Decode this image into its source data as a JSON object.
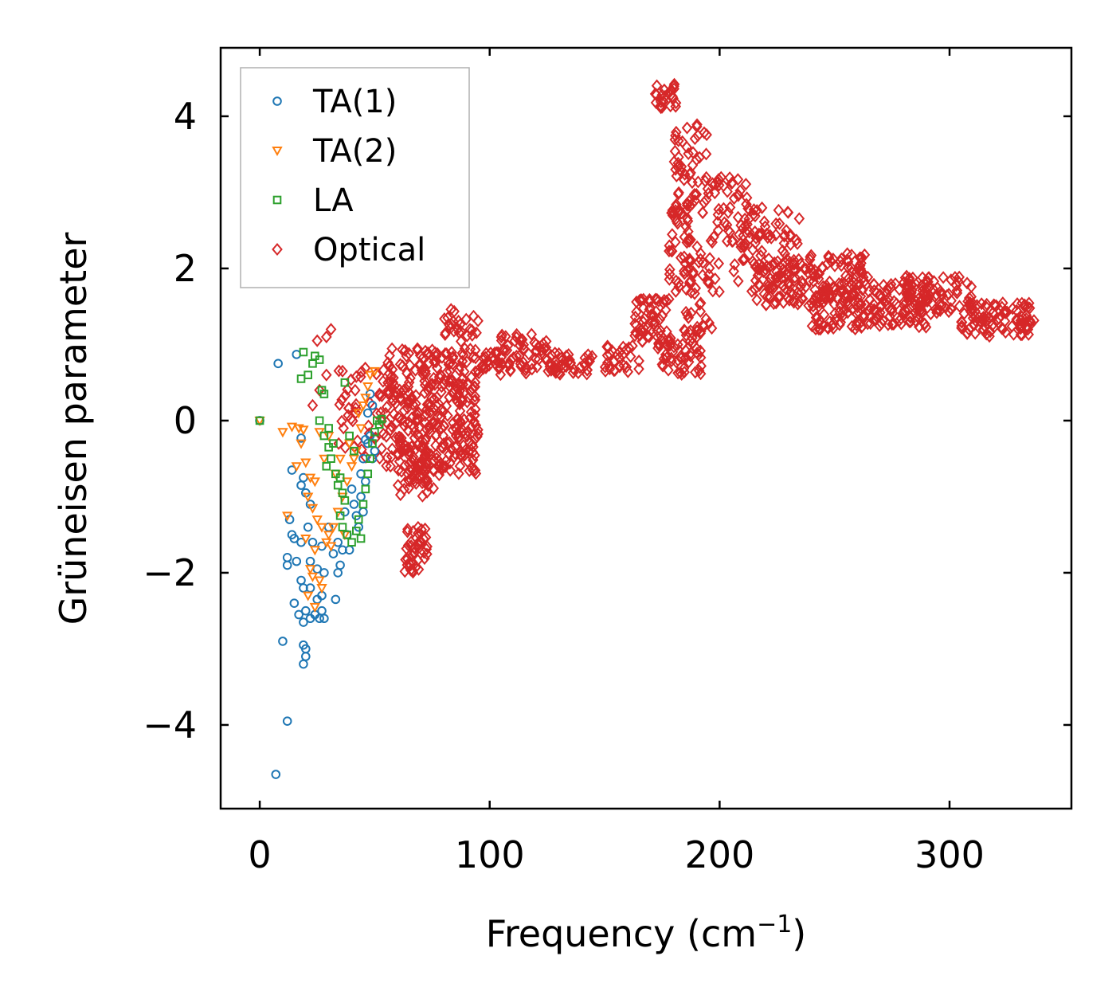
{
  "chart_data": {
    "type": "scatter",
    "title": "",
    "xlabel": "Frequency (cm",
    "xlabel_sup": "−1",
    "xlabel_end": ")",
    "ylabel": "Grüneisen parameter",
    "xlim": [
      -17,
      353
    ],
    "ylim": [
      -5.1,
      4.9
    ],
    "xticks": [
      0,
      100,
      200,
      300
    ],
    "xtick_labels": [
      "0",
      "100",
      "200",
      "300"
    ],
    "yticks": [
      -4,
      -2,
      0,
      2,
      4
    ],
    "ytick_labels": [
      "−4",
      "−2",
      "0",
      "2",
      "4"
    ],
    "legend_position": "top-left",
    "series": [
      {
        "name": "TA(1)",
        "marker": "circle",
        "color": "#1f77b4",
        "points": [
          [
            0,
            0
          ],
          [
            8,
            0.75
          ],
          [
            16,
            0.87
          ],
          [
            18,
            -0.23
          ],
          [
            14,
            -0.65
          ],
          [
            19,
            -0.75
          ],
          [
            18,
            -0.85
          ],
          [
            20,
            -0.95
          ],
          [
            22,
            -1.1
          ],
          [
            13,
            -1.3
          ],
          [
            21,
            -1.4
          ],
          [
            14,
            -1.5
          ],
          [
            15,
            -1.55
          ],
          [
            18,
            -1.6
          ],
          [
            23,
            -1.6
          ],
          [
            27,
            -1.65
          ],
          [
            12,
            -1.8
          ],
          [
            12,
            -1.9
          ],
          [
            16,
            -1.85
          ],
          [
            22,
            -1.85
          ],
          [
            25,
            -1.95
          ],
          [
            28,
            -2.0
          ],
          [
            18,
            -2.1
          ],
          [
            22,
            -2.2
          ],
          [
            19,
            -2.2
          ],
          [
            25,
            -2.35
          ],
          [
            27,
            -2.3
          ],
          [
            15,
            -2.4
          ],
          [
            20,
            -2.5
          ],
          [
            17,
            -2.55
          ],
          [
            22,
            -2.6
          ],
          [
            24,
            -2.55
          ],
          [
            26,
            -2.6
          ],
          [
            27,
            -2.5
          ],
          [
            19,
            -2.65
          ],
          [
            28,
            -2.6
          ],
          [
            10,
            -2.9
          ],
          [
            19,
            -2.95
          ],
          [
            20,
            -3.0
          ],
          [
            20,
            -3.1
          ],
          [
            19,
            -3.2
          ],
          [
            12,
            -3.95
          ],
          [
            7,
            -4.65
          ],
          [
            30,
            -1.4
          ],
          [
            32,
            -1.75
          ],
          [
            34,
            -1.6
          ],
          [
            34,
            -2.0
          ],
          [
            35,
            -1.9
          ],
          [
            33,
            -2.35
          ],
          [
            36,
            -1.7
          ],
          [
            37,
            -1.2
          ],
          [
            38,
            -1.5
          ],
          [
            39,
            -1.7
          ],
          [
            40,
            -0.9
          ],
          [
            41,
            -1.1
          ],
          [
            42,
            -1.25
          ],
          [
            43,
            -1.4
          ],
          [
            44,
            -0.7
          ],
          [
            44,
            -1.0
          ],
          [
            45,
            -0.5
          ],
          [
            45,
            -1.2
          ],
          [
            46,
            -0.25
          ],
          [
            46,
            -0.8
          ],
          [
            47,
            0.1
          ],
          [
            47,
            -0.3
          ],
          [
            48,
            0.35
          ],
          [
            48,
            -0.2
          ],
          [
            49,
            0.2
          ],
          [
            49,
            -0.5
          ],
          [
            50,
            -0.4
          ]
        ]
      },
      {
        "name": "TA(2)",
        "marker": "triangle-down",
        "color": "#ff7f0e",
        "points": [
          [
            0,
            0
          ],
          [
            10,
            -0.15
          ],
          [
            14,
            -0.08
          ],
          [
            17,
            -0.1
          ],
          [
            19,
            -0.12
          ],
          [
            18,
            -0.3
          ],
          [
            16,
            -0.6
          ],
          [
            20,
            -0.55
          ],
          [
            22,
            -0.75
          ],
          [
            24,
            -0.8
          ],
          [
            21,
            -1.0
          ],
          [
            23,
            -1.15
          ],
          [
            12,
            -1.25
          ],
          [
            25,
            -1.3
          ],
          [
            27,
            -1.4
          ],
          [
            20,
            -1.55
          ],
          [
            24,
            -1.7
          ],
          [
            29,
            -1.6
          ],
          [
            31,
            -1.65
          ],
          [
            22,
            -1.95
          ],
          [
            23,
            -2.05
          ],
          [
            26,
            -2.1
          ],
          [
            27,
            -2.2
          ],
          [
            21,
            -2.3
          ],
          [
            24,
            -2.45
          ],
          [
            30,
            -1.5
          ],
          [
            32,
            -1.4
          ],
          [
            34,
            -1.2
          ],
          [
            36,
            -1.0
          ],
          [
            38,
            -0.8
          ],
          [
            40,
            -0.6
          ],
          [
            42,
            -0.4
          ],
          [
            44,
            -0.1
          ],
          [
            45,
            0.2
          ],
          [
            47,
            0.45
          ],
          [
            48,
            0.6
          ],
          [
            50,
            0.65
          ],
          [
            46,
            0.3
          ],
          [
            43,
            0.1
          ],
          [
            39,
            -0.3
          ],
          [
            41,
            -0.5
          ],
          [
            35,
            -0.5
          ],
          [
            33,
            -0.7
          ],
          [
            28,
            -0.5
          ],
          [
            26,
            -0.15
          ],
          [
            37,
            -1.5
          ],
          [
            30,
            -0.2
          ]
        ]
      },
      {
        "name": "LA",
        "marker": "square",
        "color": "#2ca02c",
        "points": [
          [
            0,
            0
          ],
          [
            18,
            0.55
          ],
          [
            19,
            0.9
          ],
          [
            21,
            0.6
          ],
          [
            23,
            0.75
          ],
          [
            24,
            0.85
          ],
          [
            26,
            0.8
          ],
          [
            27,
            0.4
          ],
          [
            28,
            0.35
          ],
          [
            26,
            0.0
          ],
          [
            28,
            -0.2
          ],
          [
            30,
            -0.1
          ],
          [
            30,
            -0.35
          ],
          [
            31,
            -0.5
          ],
          [
            32,
            -0.3
          ],
          [
            29,
            -0.6
          ],
          [
            33,
            -0.7
          ],
          [
            34,
            -0.85
          ],
          [
            35,
            -0.75
          ],
          [
            36,
            -0.95
          ],
          [
            37,
            -1.05
          ],
          [
            35,
            -1.25
          ],
          [
            36,
            -1.4
          ],
          [
            38,
            -1.5
          ],
          [
            40,
            -1.6
          ],
          [
            42,
            -1.45
          ],
          [
            44,
            -1.55
          ],
          [
            43,
            -1.3
          ],
          [
            45,
            -1.1
          ],
          [
            46,
            -0.9
          ],
          [
            47,
            -0.7
          ],
          [
            48,
            -0.5
          ],
          [
            49,
            -0.3
          ],
          [
            50,
            -0.15
          ],
          [
            51,
            0.0
          ],
          [
            52,
            -0.05
          ],
          [
            53,
            0.02
          ],
          [
            37,
            0.5
          ],
          [
            39,
            -0.2
          ],
          [
            41,
            -0.4
          ]
        ]
      },
      {
        "name": "Optical",
        "marker": "diamond",
        "color": "#d62728",
        "clouds": [
          {
            "x": [
              33,
              58
            ],
            "y": [
              -0.5,
              0.7
            ],
            "n": 50
          },
          {
            "x": [
              55,
              95
            ],
            "y": [
              -0.7,
              0.95
            ],
            "n": 330
          },
          {
            "x": [
              60,
              80
            ],
            "y": [
              -1.0,
              -0.3
            ],
            "n": 60
          },
          {
            "x": [
              63,
              73
            ],
            "y": [
              -2.0,
              -1.4
            ],
            "n": 40
          },
          {
            "x": [
              80,
              95
            ],
            "y": [
              1.0,
              1.5
            ],
            "n": 25
          },
          {
            "x": [
              95,
              145
            ],
            "y": [
              0.6,
              0.9
            ],
            "n": 90
          },
          {
            "x": [
              105,
              125
            ],
            "y": [
              0.9,
              1.15
            ],
            "n": 30
          },
          {
            "x": [
              150,
              165
            ],
            "y": [
              0.6,
              1.0
            ],
            "n": 30
          },
          {
            "x": [
              163,
              178
            ],
            "y": [
              1.0,
              1.6
            ],
            "n": 50
          },
          {
            "x": [
              172,
              182
            ],
            "y": [
              4.1,
              4.45
            ],
            "n": 25
          },
          {
            "x": [
              180,
              195
            ],
            "y": [
              2.6,
              3.9
            ],
            "n": 60
          },
          {
            "x": [
              178,
              188
            ],
            "y": [
              1.5,
              2.9
            ],
            "n": 40
          },
          {
            "x": [
              173,
              192
            ],
            "y": [
              0.6,
              1.2
            ],
            "n": 60
          },
          {
            "x": [
              185,
              200
            ],
            "y": [
              1.2,
              2.3
            ],
            "n": 40
          },
          {
            "x": [
              195,
              212
            ],
            "y": [
              2.3,
              3.2
            ],
            "n": 40
          },
          {
            "x": [
              205,
              235
            ],
            "y": [
              1.8,
              2.8
            ],
            "n": 80
          },
          {
            "x": [
              215,
              265
            ],
            "y": [
              1.5,
              2.2
            ],
            "n": 160
          },
          {
            "x": [
              240,
              290
            ],
            "y": [
              1.2,
              1.8
            ],
            "n": 150
          },
          {
            "x": [
              280,
              310
            ],
            "y": [
              1.4,
              1.9
            ],
            "n": 90
          },
          {
            "x": [
              305,
              337
            ],
            "y": [
              1.1,
              1.55
            ],
            "n": 90
          }
        ],
        "points": [
          [
            25,
            1.05
          ],
          [
            29,
            1.1
          ],
          [
            31,
            1.2
          ],
          [
            26,
            0.4
          ],
          [
            29,
            0.6
          ],
          [
            36,
            0.65
          ],
          [
            23,
            0.2
          ],
          [
            335,
            1.3
          ],
          [
            246,
            1.6
          ],
          [
            229,
            2.5
          ],
          [
            211,
            2.65
          ],
          [
            214,
            1.7
          ]
        ]
      }
    ]
  }
}
